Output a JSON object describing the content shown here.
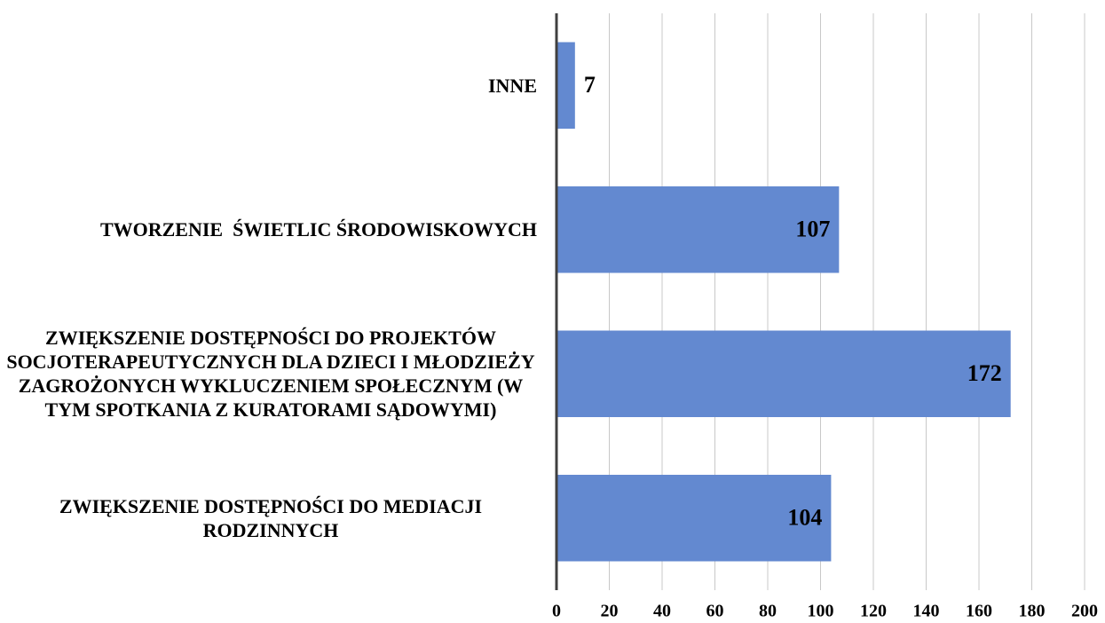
{
  "chart_data": {
    "type": "barh",
    "categories": [
      "INNE",
      "TWORZENIE  ŚWIETLIC ŚRODOWISKOWYCH",
      "ZWIĘKSZENIE DOSTĘPNOŚCI DO PROJEKTÓW SOCJOTERAPEUTYCZNYCH DLA DZIECI I MŁODZIEŻY ZAGROŻONYCH WYKLUCZENIEM SPOŁECZNYM (W TYM SPOTKANIA Z KURATORAMI SĄDOWYMI)",
      "ZWIĘKSZENIE DOSTĘPNOŚCI DO MEDIACJI RODZINNYCH"
    ],
    "values": [
      7,
      107,
      172,
      104
    ],
    "color": "#6389d0",
    "xlim": [
      0,
      200
    ],
    "xticks": [
      0,
      20,
      40,
      60,
      80,
      100,
      120,
      140,
      160,
      180,
      200
    ],
    "grid": true
  }
}
